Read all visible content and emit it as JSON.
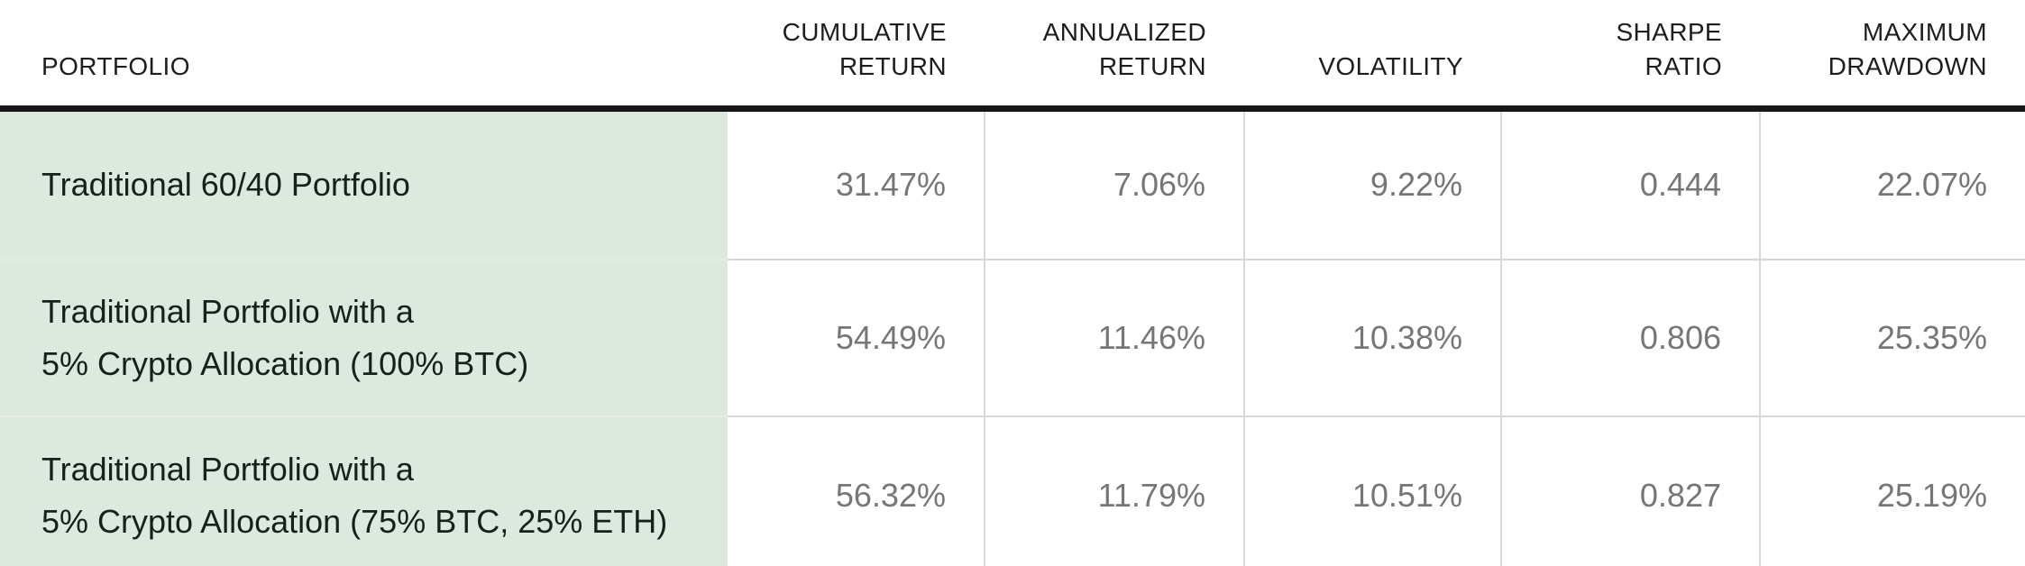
{
  "chart_data": {
    "type": "table",
    "columns": [
      "PORTFOLIO",
      "CUMULATIVE RETURN",
      "ANNUALIZED RETURN",
      "VOLATILITY",
      "SHARPE RATIO",
      "MAXIMUM DRAWDOWN"
    ],
    "rows": [
      [
        "Traditional 60/40 Portfolio",
        "31.47%",
        "7.06%",
        "9.22%",
        "0.444",
        "22.07%"
      ],
      [
        "Traditional Portfolio with a 5% Crypto Allocation (100% BTC)",
        "54.49%",
        "11.46%",
        "10.38%",
        "0.806",
        "25.35%"
      ],
      [
        "Traditional Portfolio with a 5% Crypto Allocation (75% BTC, 25% ETH)",
        "56.32%",
        "11.79%",
        "10.51%",
        "0.827",
        "25.19%"
      ]
    ]
  },
  "table": {
    "columns": [
      {
        "id": "portfolio",
        "label_lines": [
          "PORTFOLIO"
        ]
      },
      {
        "id": "cumulative-return",
        "label_lines": [
          "CUMULATIVE",
          "RETURN"
        ]
      },
      {
        "id": "annualized-return",
        "label_lines": [
          "ANNUALIZED",
          "RETURN"
        ]
      },
      {
        "id": "volatility",
        "label_lines": [
          "VOLATILITY"
        ]
      },
      {
        "id": "sharpe-ratio",
        "label_lines": [
          "SHARPE",
          "RATIO"
        ]
      },
      {
        "id": "maximum-drawdown",
        "label_lines": [
          "MAXIMUM",
          "DRAWDOWN"
        ]
      }
    ],
    "rows": [
      {
        "name_lines": [
          "Traditional 60/40 Portfolio"
        ],
        "values": [
          "31.47%",
          "7.06%",
          "9.22%",
          "0.444",
          "22.07%"
        ]
      },
      {
        "name_lines": [
          "Traditional Portfolio with a",
          "5% Crypto Allocation (100% BTC)"
        ],
        "values": [
          "54.49%",
          "11.46%",
          "10.38%",
          "0.806",
          "25.35%"
        ]
      },
      {
        "name_lines": [
          "Traditional Portfolio with a",
          "5% Crypto Allocation (75% BTC, 25% ETH)"
        ],
        "values": [
          "56.32%",
          "11.79%",
          "10.51%",
          "0.827",
          "25.19%"
        ]
      }
    ]
  },
  "colors": {
    "portfolio_cell_bg": "#dde9df",
    "header_rule": "#161616",
    "grid_line": "#d6d6d6",
    "bottom_rule": "#c9c9c9",
    "header_text": "#1d1d1b",
    "portfolio_text": "#17211b",
    "value_text": "#767676",
    "page_bg": "#ffffff"
  }
}
